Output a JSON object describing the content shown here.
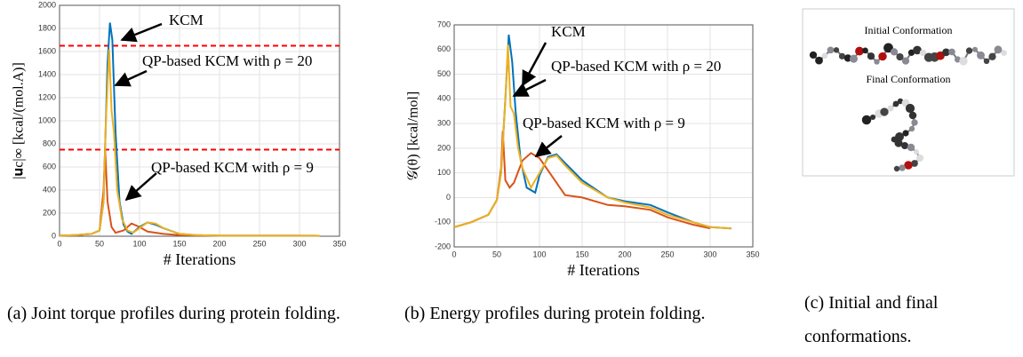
{
  "chart_data": [
    {
      "type": "line",
      "xlabel": "# Iterations",
      "ylabel": "|𝐮c|∞ [kcal/(mol.A)]",
      "xlim": [
        0,
        350
      ],
      "ylim": [
        0,
        2000
      ],
      "xticks": [
        0,
        50,
        100,
        150,
        200,
        250,
        300,
        350
      ],
      "yticks": [
        0,
        200,
        400,
        600,
        800,
        1000,
        1200,
        1400,
        1600,
        1800,
        2000
      ],
      "grid": true,
      "hlines": [
        {
          "value": 1650,
          "color": "#ff0000",
          "linestyle": "dashed"
        },
        {
          "value": 750,
          "color": "#ff0000",
          "linestyle": "dashed"
        }
      ],
      "series": [
        {
          "name": "KCM",
          "color": "#0072bd",
          "x": [
            0,
            20,
            40,
            50,
            55,
            60,
            63,
            66,
            70,
            75,
            80,
            85,
            90,
            95,
            100,
            110,
            120,
            130,
            150,
            170,
            200,
            250,
            300,
            320
          ],
          "values": [
            5,
            10,
            20,
            50,
            300,
            1500,
            1850,
            1700,
            900,
            300,
            100,
            40,
            20,
            50,
            80,
            120,
            100,
            70,
            20,
            10,
            5,
            5,
            5,
            5
          ]
        },
        {
          "name": "QP-based KCM with ρ = 9",
          "color": "#d95319",
          "x": [
            0,
            20,
            40,
            50,
            55,
            57,
            60,
            65,
            70,
            80,
            90,
            100,
            110,
            130,
            150,
            200,
            250,
            300
          ],
          "values": [
            5,
            10,
            20,
            50,
            400,
            750,
            300,
            80,
            30,
            50,
            110,
            80,
            40,
            20,
            10,
            5,
            5,
            5
          ]
        },
        {
          "name": "QP-based KCM with ρ = 20",
          "color": "#edb120",
          "x": [
            0,
            20,
            40,
            50,
            55,
            58,
            62,
            65,
            68,
            72,
            78,
            85,
            92,
            100,
            110,
            120,
            130,
            150,
            170,
            200,
            250,
            300,
            325
          ],
          "values": [
            5,
            10,
            20,
            50,
            300,
            1000,
            1620,
            1090,
            900,
            400,
            150,
            50,
            30,
            70,
            120,
            110,
            70,
            20,
            10,
            5,
            5,
            5,
            5
          ]
        }
      ],
      "caption": "(a) Joint torque profiles during protein folding."
    },
    {
      "type": "line",
      "xlabel": "# Iterations",
      "ylabel": "𝒢(θ) [kcal/mol]",
      "xlim": [
        0,
        350
      ],
      "ylim": [
        -200,
        700
      ],
      "xticks": [
        0,
        50,
        100,
        150,
        200,
        250,
        300,
        350
      ],
      "yticks": [
        -200,
        -100,
        0,
        100,
        200,
        300,
        400,
        500,
        600,
        700
      ],
      "grid": true,
      "series": [
        {
          "name": "KCM",
          "color": "#0072bd",
          "x": [
            0,
            20,
            40,
            50,
            55,
            60,
            64,
            68,
            72,
            78,
            85,
            95,
            100,
            110,
            120,
            130,
            150,
            180,
            200,
            230,
            250,
            280,
            300,
            325
          ],
          "values": [
            -120,
            -100,
            -70,
            -10,
            100,
            400,
            660,
            550,
            350,
            150,
            40,
            20,
            90,
            165,
            175,
            140,
            70,
            0,
            -15,
            -30,
            -60,
            -100,
            -120,
            -125
          ]
        },
        {
          "name": "QP-based KCM with ρ = 9",
          "color": "#d95319",
          "x": [
            0,
            20,
            40,
            50,
            55,
            57,
            60,
            65,
            70,
            80,
            90,
            100,
            110,
            130,
            150,
            180,
            200,
            230,
            250,
            280,
            300
          ],
          "values": [
            -120,
            -100,
            -70,
            -10,
            120,
            270,
            70,
            40,
            60,
            150,
            180,
            160,
            110,
            10,
            0,
            -30,
            -35,
            -50,
            -80,
            -110,
            -125
          ]
        },
        {
          "name": "QP-based KCM with ρ = 20",
          "color": "#edb120",
          "x": [
            0,
            20,
            40,
            50,
            55,
            60,
            63,
            66,
            70,
            75,
            80,
            90,
            100,
            110,
            120,
            130,
            150,
            180,
            200,
            230,
            250,
            280,
            300,
            325
          ],
          "values": [
            -120,
            -100,
            -70,
            -10,
            100,
            400,
            620,
            370,
            340,
            200,
            120,
            40,
            100,
            160,
            170,
            130,
            60,
            0,
            -20,
            -40,
            -70,
            -100,
            -120,
            -125
          ]
        }
      ],
      "caption": "(b) Energy profiles during protein folding."
    }
  ],
  "panel_c": {
    "initial_label": "Initial Conformation",
    "final_label": "Final Conformation",
    "caption": "(c) Initial and final conformations."
  }
}
